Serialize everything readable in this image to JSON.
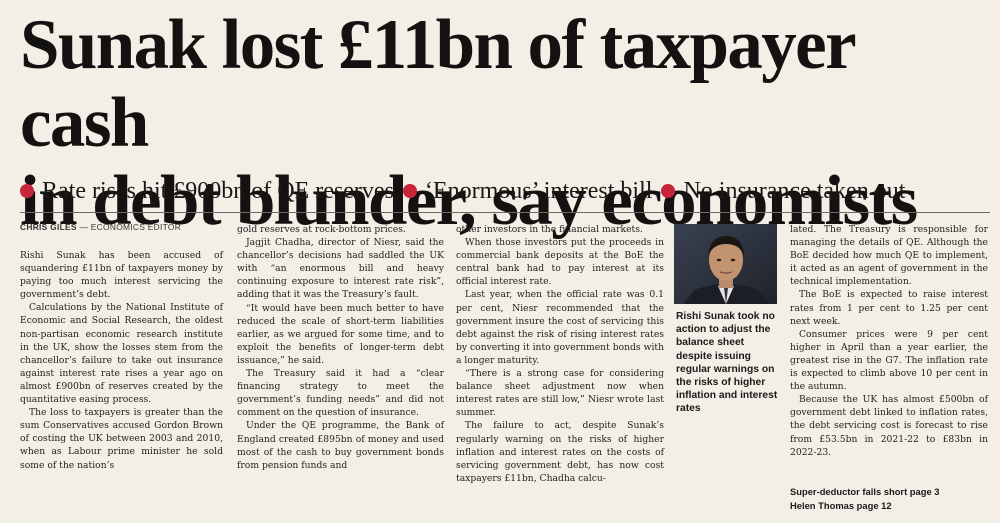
{
  "headline": {
    "line1": "Sunak lost £11bn of taxpayer cash",
    "line2": "in debt blunder, say economists"
  },
  "strap": [
    "Rate rises hit £900bn of QE reserves",
    "‘Enormous’ interest bill",
    "No insurance taken out"
  ],
  "strap_bullet_color": "#c8243a",
  "byline": {
    "name": "CHRIS GILES",
    "separator": "—",
    "role": "ECONOMICS EDITOR"
  },
  "columns": [
    [
      "Rishi Sunak has been accused of squandering £11bn of taxpayers money by paying too much interest servicing the government’s debt.",
      "Calculations by the National Institute of Economic and Social Research, the oldest non-partisan economic research institute in the UK, show the losses stem from the chancellor’s failure to take out insurance against interest rate rises a year ago on almost £900bn of reserves created by the quantitative easing process.",
      "The loss to taxpayers is greater than the sum Conservatives accused Gordon Brown of costing the UK between 2003 and 2010, when as Labour prime minister he sold some of the nation’s"
    ],
    [
      "gold reserves at rock-bottom prices.",
      "Jagjit Chadha, director of Niesr, said the chancellor’s decisions had saddled the UK with “an enormous bill and heavy continuing exposure to interest rate risk”, adding that it was the Treasury’s fault.",
      "“It would have been much better to have reduced the scale of short-term liabilities earlier, as we argued for some time, and to exploit the benefits of longer-term debt issuance,” he said.",
      "The Treasury said it had a “clear financing strategy to meet the government’s funding needs” and did not comment on the question of insurance.",
      "Under the QE programme, the Bank of England created £895bn of money and used most of the cash to buy government bonds from pension funds and"
    ],
    [
      "other investors in the financial markets.",
      "When those investors put the proceeds in commercial bank deposits at the BoE the central bank had to pay interest at its official interest rate.",
      "Last year, when the official rate was 0.1 per cent, Niesr recommended that the government insure the cost of servicing this debt against the risk of rising interest rates by converting it into government bonds with a longer maturity.",
      "“There is a strong case for considering balance sheet adjustment now when interest rates are still low,” Niesr wrote last summer.",
      "The failure to act, despite Sunak’s regularly warning on the risks of higher inflation and interest rates on the costs of servicing government debt, has now cost taxpayers £11bn, Chadha calcu-"
    ],
    [
      "lated. The Treasury is responsible for managing the details of QE. Although the BoE decided how much QE to implement, it acted as an agent of government in the technical implementation.",
      "The BoE is expected to raise interest rates from 1 per cent to 1.25 per cent next week.",
      "Consumer prices were 9 per cent higher in April than a year earlier, the greatest rise in the G7. The inflation rate is expected to climb above 10 per cent in the autumn.",
      "Because the UK has almost £500bn of government debt linked to inflation rates, the debt servicing cost is forecast to rise from £53.5bn in 2021-22 to £83bn in 2022-23."
    ]
  ],
  "photo_caption": "Rishi Sunak took no action to adjust the balance sheet despite issuing regular warnings on the risks of higher inflation and interest rates",
  "references": [
    "Super-deductor falls short page 3",
    "Helen Thomas page 12"
  ]
}
